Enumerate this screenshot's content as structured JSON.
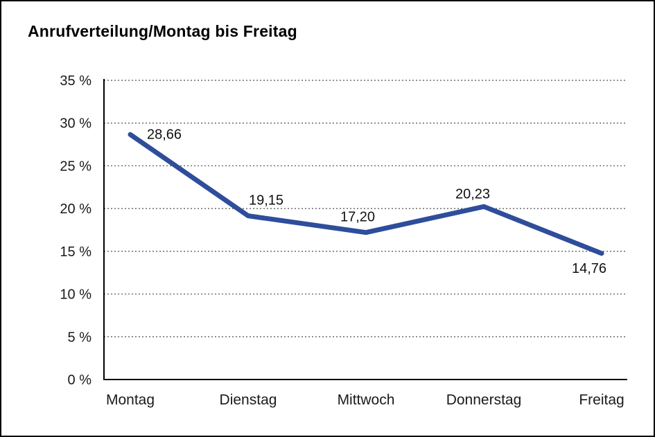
{
  "chart_data": {
    "type": "line",
    "title": "Anrufverteilung/Montag bis Freitag",
    "categories": [
      "Montag",
      "Dienstag",
      "Mittwoch",
      "Donnerstag",
      "Freitag"
    ],
    "values": [
      28.66,
      19.15,
      17.2,
      20.23,
      14.76
    ],
    "point_labels": [
      "28,66",
      "19,15",
      "17,20",
      "20,23",
      "14,76"
    ],
    "xlabel": "",
    "ylabel": "",
    "ylim": [
      0,
      35
    ],
    "y_ticks": [
      0,
      5,
      10,
      15,
      20,
      25,
      30,
      35
    ],
    "y_tick_labels": [
      "0 %",
      "5 %",
      "10 %",
      "15 %",
      "20 %",
      "25 %",
      "30 %",
      "35 %"
    ],
    "grid": "horizontal-dotted",
    "legend": "none",
    "line_color": "#2e4d9b",
    "axis_color": "#000000",
    "gridline_color": "#4d4d4d",
    "background": "#ffffff",
    "border_color": "#000000"
  }
}
